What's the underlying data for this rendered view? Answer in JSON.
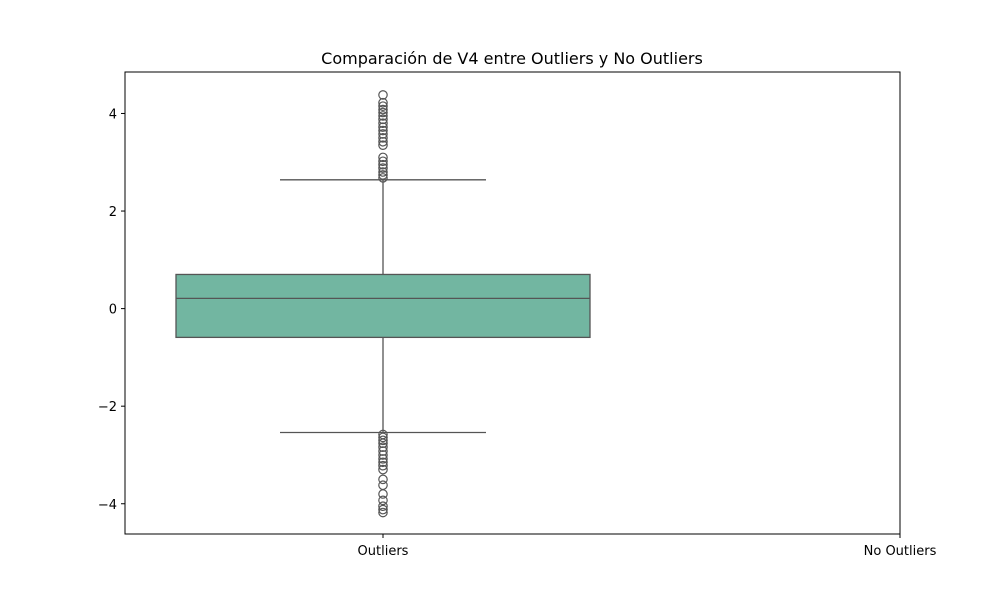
{
  "chart_data": {
    "type": "box",
    "title": "Comparación de V4 entre Outliers y No Outliers",
    "xlabel": "",
    "ylabel": "",
    "categories": [
      "Outliers",
      "No Outliers"
    ],
    "ylim": [
      -4.62,
      4.85
    ],
    "yticks": [
      -4,
      -2,
      0,
      2,
      4
    ],
    "ytick_labels": [
      "−4",
      "−2",
      "0",
      "2",
      "4"
    ],
    "grid": false,
    "box_color": "#72b6a1",
    "line_color": "#555555",
    "boxes": [
      {
        "category": "Outliers",
        "q1": -0.59,
        "median": 0.21,
        "q3": 0.7,
        "whisker_low": -2.54,
        "whisker_high": 2.64,
        "outliers": [
          4.38,
          4.22,
          4.15,
          4.08,
          4.02,
          3.95,
          3.88,
          3.8,
          3.72,
          3.65,
          3.58,
          3.5,
          3.42,
          3.35,
          3.1,
          3.02,
          2.95,
          2.88,
          2.8,
          2.74,
          2.68,
          -2.58,
          -2.64,
          -2.7,
          -2.76,
          -2.84,
          -2.92,
          -3.0,
          -3.08,
          -3.15,
          -3.22,
          -3.3,
          -3.5,
          -3.62,
          -3.8,
          -3.93,
          -4.05,
          -4.12,
          -4.18
        ]
      }
    ]
  }
}
